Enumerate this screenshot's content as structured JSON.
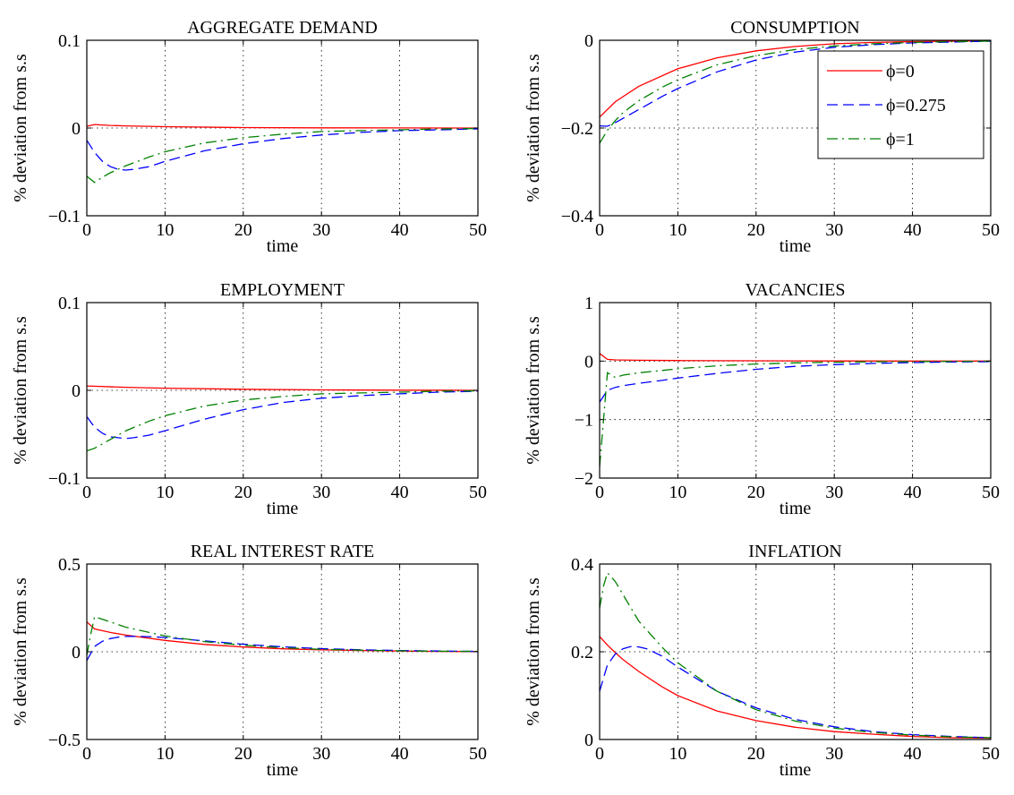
{
  "chart_data": [
    {
      "type": "line",
      "title": "AGGREGATE DEMAND",
      "ylabel": "% deviation from s.s",
      "xlabel": "time",
      "xlim": [
        0,
        50
      ],
      "ylim": [
        -0.1,
        0.1
      ],
      "xticks": [
        "0",
        "10",
        "20",
        "30",
        "40",
        "50"
      ],
      "yticks": [
        "0.1",
        "0",
        "−0.1"
      ],
      "ytick_values": [
        0.1,
        0,
        -0.1
      ],
      "grid": true,
      "series": [
        {
          "name": "ϕ=0",
          "color": "#ff0000",
          "style": "solid",
          "x": [
            0,
            1,
            3,
            5,
            10,
            20,
            30,
            40,
            50
          ],
          "y": [
            0.002,
            0.004,
            0.003,
            0.0025,
            0.0015,
            0.0005,
            0.0002,
            0.0001,
            0.0
          ]
        },
        {
          "name": "ϕ=0.275",
          "color": "#0000ff",
          "style": "dashed",
          "x": [
            0,
            1,
            2,
            3,
            4,
            5,
            6,
            8,
            10,
            15,
            20,
            25,
            30,
            35,
            40,
            45,
            50
          ],
          "y": [
            -0.014,
            -0.028,
            -0.038,
            -0.044,
            -0.047,
            -0.048,
            -0.047,
            -0.044,
            -0.038,
            -0.026,
            -0.018,
            -0.012,
            -0.008,
            -0.005,
            -0.003,
            -0.002,
            -0.001
          ]
        },
        {
          "name": "ϕ=1",
          "color": "#008000",
          "style": "dashdot",
          "x": [
            0,
            1,
            2,
            3,
            5,
            8,
            10,
            15,
            20,
            25,
            30,
            35,
            40,
            45,
            50
          ],
          "y": [
            -0.055,
            -0.062,
            -0.056,
            -0.051,
            -0.043,
            -0.033,
            -0.027,
            -0.017,
            -0.011,
            -0.007,
            -0.004,
            -0.003,
            -0.002,
            -0.001,
            -0.0005
          ]
        }
      ]
    },
    {
      "type": "line",
      "title": "CONSUMPTION",
      "ylabel": "% deviation from s.s",
      "xlabel": "time",
      "xlim": [
        0,
        50
      ],
      "ylim": [
        -0.4,
        0
      ],
      "xticks": [
        "0",
        "10",
        "20",
        "30",
        "40",
        "50"
      ],
      "yticks": [
        "0",
        "−0.2",
        "−0.4"
      ],
      "ytick_values": [
        0,
        -0.2,
        -0.4
      ],
      "grid": true,
      "legend": "top-right",
      "series": [
        {
          "name": "ϕ=0",
          "color": "#ff0000",
          "style": "solid",
          "x": [
            0,
            2,
            5,
            10,
            15,
            20,
            25,
            30,
            35,
            40,
            45,
            50
          ],
          "y": [
            -0.175,
            -0.14,
            -0.105,
            -0.065,
            -0.04,
            -0.024,
            -0.014,
            -0.008,
            -0.005,
            -0.003,
            -0.002,
            -0.001
          ]
        },
        {
          "name": "ϕ=0.275",
          "color": "#0000ff",
          "style": "dashed",
          "x": [
            0,
            1,
            2,
            3,
            5,
            8,
            10,
            15,
            20,
            25,
            30,
            35,
            40,
            45,
            50
          ],
          "y": [
            -0.195,
            -0.196,
            -0.188,
            -0.178,
            -0.158,
            -0.128,
            -0.11,
            -0.072,
            -0.045,
            -0.027,
            -0.016,
            -0.01,
            -0.006,
            -0.004,
            -0.002
          ]
        },
        {
          "name": "ϕ=1",
          "color": "#008000",
          "style": "dashdot",
          "x": [
            0,
            1,
            2,
            3,
            5,
            8,
            10,
            15,
            20,
            25,
            30,
            35,
            40,
            45,
            50
          ],
          "y": [
            -0.235,
            -0.205,
            -0.183,
            -0.165,
            -0.138,
            -0.107,
            -0.09,
            -0.056,
            -0.035,
            -0.021,
            -0.013,
            -0.008,
            -0.005,
            -0.003,
            -0.002
          ]
        }
      ]
    },
    {
      "type": "line",
      "title": "EMPLOYMENT",
      "ylabel": "% deviation from s.s",
      "xlabel": "time",
      "xlim": [
        0,
        50
      ],
      "ylim": [
        -0.1,
        0.1
      ],
      "xticks": [
        "0",
        "10",
        "20",
        "30",
        "40",
        "50"
      ],
      "yticks": [
        "0.1",
        "0",
        "−0.1"
      ],
      "ytick_values": [
        0.1,
        0,
        -0.1
      ],
      "grid": true,
      "series": [
        {
          "name": "ϕ=0",
          "color": "#ff0000",
          "style": "solid",
          "x": [
            0,
            5,
            10,
            20,
            30,
            40,
            50
          ],
          "y": [
            0.005,
            0.0035,
            0.0025,
            0.0012,
            0.0005,
            0.0002,
            0.0
          ]
        },
        {
          "name": "ϕ=0.275",
          "color": "#0000ff",
          "style": "dashed",
          "x": [
            0,
            1,
            2,
            3,
            4,
            5,
            6,
            8,
            10,
            15,
            20,
            25,
            30,
            35,
            40,
            45,
            50
          ],
          "y": [
            -0.03,
            -0.042,
            -0.049,
            -0.053,
            -0.054,
            -0.055,
            -0.054,
            -0.051,
            -0.046,
            -0.033,
            -0.022,
            -0.014,
            -0.009,
            -0.006,
            -0.004,
            -0.002,
            -0.001
          ]
        },
        {
          "name": "ϕ=1",
          "color": "#008000",
          "style": "dashdot",
          "x": [
            0,
            1,
            2,
            3,
            5,
            8,
            10,
            15,
            20,
            25,
            30,
            35,
            40,
            45,
            50
          ],
          "y": [
            -0.069,
            -0.066,
            -0.061,
            -0.056,
            -0.046,
            -0.035,
            -0.029,
            -0.018,
            -0.011,
            -0.007,
            -0.004,
            -0.003,
            -0.002,
            -0.001,
            -0.0005
          ]
        }
      ]
    },
    {
      "type": "line",
      "title": "VACANCIES",
      "ylabel": "% deviation from s.s",
      "xlabel": "time",
      "xlim": [
        0,
        50
      ],
      "ylim": [
        -2,
        1
      ],
      "xticks": [
        "0",
        "10",
        "20",
        "30",
        "40",
        "50"
      ],
      "yticks": [
        "1",
        "0",
        "−1",
        "−2"
      ],
      "ytick_values": [
        1,
        0,
        -1,
        -2
      ],
      "grid": true,
      "series": [
        {
          "name": "ϕ=0",
          "color": "#ff0000",
          "style": "solid",
          "x": [
            0,
            1,
            2,
            5,
            10,
            20,
            30,
            40,
            50
          ],
          "y": [
            0.13,
            0.03,
            0.02,
            0.015,
            0.01,
            0.005,
            0.002,
            0.001,
            0.0
          ]
        },
        {
          "name": "ϕ=0.275",
          "color": "#0000ff",
          "style": "dashed",
          "x": [
            0,
            1,
            2,
            3,
            5,
            8,
            10,
            15,
            20,
            25,
            30,
            35,
            40,
            45,
            50
          ],
          "y": [
            -0.7,
            -0.5,
            -0.45,
            -0.42,
            -0.38,
            -0.33,
            -0.29,
            -0.21,
            -0.14,
            -0.09,
            -0.06,
            -0.04,
            -0.025,
            -0.015,
            -0.01
          ]
        },
        {
          "name": "ϕ=1",
          "color": "#008000",
          "style": "dashdot",
          "x": [
            0,
            0.5,
            1,
            2,
            3,
            5,
            8,
            10,
            15,
            20,
            25,
            30,
            35,
            40,
            45,
            50
          ],
          "y": [
            -1.8,
            -1.0,
            -0.2,
            -0.28,
            -0.24,
            -0.2,
            -0.16,
            -0.13,
            -0.08,
            -0.05,
            -0.03,
            -0.02,
            -0.012,
            -0.008,
            -0.005,
            -0.003
          ]
        }
      ]
    },
    {
      "type": "line",
      "title": "REAL INTEREST RATE",
      "ylabel": "% deviation from s.s",
      "xlabel": "time",
      "xlim": [
        0,
        50
      ],
      "ylim": [
        -0.5,
        0.5
      ],
      "xticks": [
        "0",
        "10",
        "20",
        "30",
        "40",
        "50"
      ],
      "yticks": [
        "0.5",
        "0",
        "−0.5"
      ],
      "ytick_values": [
        0.5,
        0,
        -0.5
      ],
      "grid": true,
      "series": [
        {
          "name": "ϕ=0",
          "color": "#ff0000",
          "style": "solid",
          "x": [
            0,
            1,
            3,
            5,
            10,
            15,
            20,
            25,
            30,
            35,
            40,
            45,
            50
          ],
          "y": [
            0.17,
            0.13,
            0.11,
            0.095,
            0.065,
            0.042,
            0.027,
            0.017,
            0.011,
            0.007,
            0.004,
            0.002,
            0.001
          ]
        },
        {
          "name": "ϕ=0.275",
          "color": "#0000ff",
          "style": "dashed",
          "x": [
            0,
            1,
            2,
            3,
            4,
            5,
            6,
            8,
            10,
            15,
            20,
            25,
            30,
            35,
            40,
            45,
            50
          ],
          "y": [
            -0.05,
            0.03,
            0.06,
            0.075,
            0.083,
            0.087,
            0.088,
            0.086,
            0.081,
            0.062,
            0.043,
            0.028,
            0.018,
            0.011,
            0.007,
            0.004,
            0.002
          ]
        },
        {
          "name": "ϕ=1",
          "color": "#008000",
          "style": "dashdot",
          "x": [
            0,
            0.5,
            1,
            3,
            5,
            10,
            15,
            20,
            25,
            30,
            35,
            40,
            45,
            50
          ],
          "y": [
            -0.02,
            0.1,
            0.2,
            0.17,
            0.14,
            0.09,
            0.058,
            0.037,
            0.023,
            0.014,
            0.009,
            0.005,
            0.003,
            0.002
          ]
        }
      ]
    },
    {
      "type": "line",
      "title": "INFLATION",
      "ylabel": "% deviation from s.s",
      "xlabel": "time",
      "xlim": [
        0,
        50
      ],
      "ylim": [
        0,
        0.4
      ],
      "xticks": [
        "0",
        "10",
        "20",
        "30",
        "40",
        "50"
      ],
      "yticks": [
        "0.4",
        "0.2",
        "0"
      ],
      "ytick_values": [
        0.4,
        0.2,
        0
      ],
      "grid": true,
      "series": [
        {
          "name": "ϕ=0",
          "color": "#ff0000",
          "style": "solid",
          "x": [
            0,
            1,
            2,
            3,
            5,
            8,
            10,
            15,
            20,
            25,
            30,
            35,
            40,
            45,
            50
          ],
          "y": [
            0.235,
            0.215,
            0.198,
            0.182,
            0.155,
            0.12,
            0.1,
            0.065,
            0.043,
            0.028,
            0.018,
            0.012,
            0.007,
            0.004,
            0.003
          ]
        },
        {
          "name": "ϕ=0.275",
          "color": "#0000ff",
          "style": "dashed",
          "x": [
            0,
            1,
            2,
            3,
            4,
            5,
            6,
            8,
            10,
            15,
            20,
            25,
            30,
            35,
            40,
            45,
            50
          ],
          "y": [
            0.11,
            0.17,
            0.195,
            0.207,
            0.212,
            0.211,
            0.207,
            0.19,
            0.165,
            0.11,
            0.072,
            0.046,
            0.029,
            0.018,
            0.011,
            0.007,
            0.004
          ]
        },
        {
          "name": "ϕ=1",
          "color": "#008000",
          "style": "dashdot",
          "x": [
            0,
            0.5,
            1,
            2,
            3,
            5,
            8,
            10,
            15,
            20,
            25,
            30,
            35,
            40,
            45,
            50
          ],
          "y": [
            0.3,
            0.35,
            0.38,
            0.36,
            0.33,
            0.27,
            0.21,
            0.175,
            0.11,
            0.068,
            0.042,
            0.026,
            0.016,
            0.01,
            0.006,
            0.004
          ]
        }
      ]
    }
  ]
}
